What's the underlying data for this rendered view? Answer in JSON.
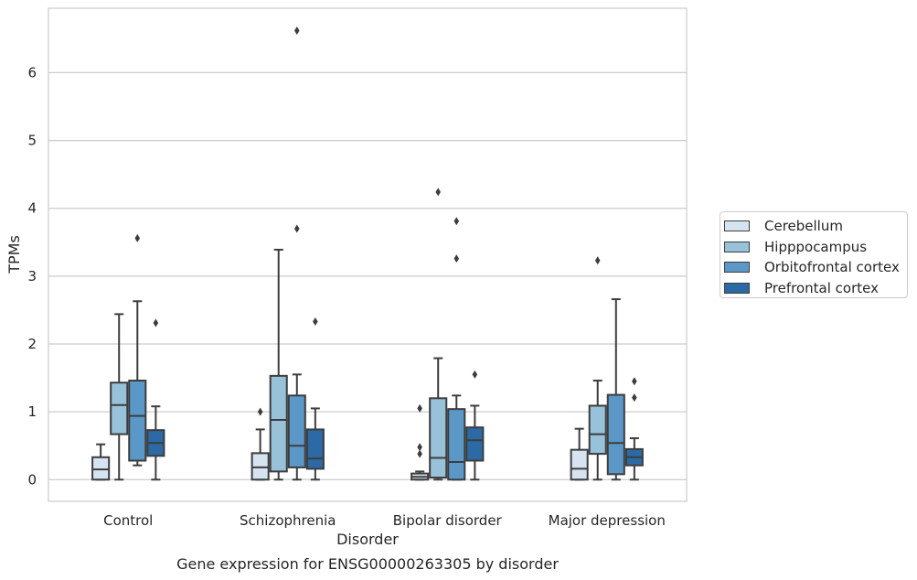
{
  "chart_data": {
    "type": "box",
    "title": "Gene expression for ENSG00000263305 by disorder",
    "xlabel": "Disorder",
    "ylabel": "TPMs",
    "ylim": [
      -0.32,
      6.95
    ],
    "yticks": [
      0,
      1,
      2,
      3,
      4,
      5,
      6
    ],
    "grid": true,
    "legend_position": "right",
    "categories": [
      "Control",
      "Schizophrenia",
      "Bipolar disorder",
      "Major depression"
    ],
    "series": [
      {
        "name": "Cerebellum",
        "color": "#d6e4f2",
        "boxes": [
          {
            "whisker_low": 0,
            "q1": 0,
            "median": 0.15,
            "q3": 0.33,
            "whisker_high": 0.52,
            "outliers": []
          },
          {
            "whisker_low": 0,
            "q1": 0,
            "median": 0.18,
            "q3": 0.39,
            "whisker_high": 0.74,
            "outliers": [
              1.0
            ]
          },
          {
            "whisker_low": 0,
            "q1": 0,
            "median": 0.04,
            "q3": 0.09,
            "whisker_high": 0.12,
            "outliers": [
              1.05,
              0.48,
              0.38
            ]
          },
          {
            "whisker_low": 0,
            "q1": 0,
            "median": 0.16,
            "q3": 0.44,
            "whisker_high": 0.75,
            "outliers": []
          }
        ]
      },
      {
        "name": "Hipppocampus",
        "color": "#98c1da",
        "boxes": [
          {
            "whisker_low": 0,
            "q1": 0.67,
            "median": 1.1,
            "q3": 1.43,
            "whisker_high": 2.44,
            "outliers": []
          },
          {
            "whisker_low": 0,
            "q1": 0.12,
            "median": 0.88,
            "q3": 1.53,
            "whisker_high": 3.39,
            "outliers": []
          },
          {
            "whisker_low": 0,
            "q1": 0.03,
            "median": 0.32,
            "q3": 1.2,
            "whisker_high": 1.79,
            "outliers": [
              4.24
            ]
          },
          {
            "whisker_low": 0,
            "q1": 0.38,
            "median": 0.67,
            "q3": 1.09,
            "whisker_high": 1.46,
            "outliers": [
              3.23
            ]
          }
        ]
      },
      {
        "name": "Orbitofrontal cortex",
        "color": "#5b98c7",
        "boxes": [
          {
            "whisker_low": 0.21,
            "q1": 0.28,
            "median": 0.94,
            "q3": 1.46,
            "whisker_high": 2.63,
            "outliers": [
              3.56
            ]
          },
          {
            "whisker_low": 0,
            "q1": 0.18,
            "median": 0.5,
            "q3": 1.24,
            "whisker_high": 1.55,
            "outliers": [
              3.7,
              6.62
            ]
          },
          {
            "whisker_low": 0,
            "q1": 0,
            "median": 0.26,
            "q3": 1.04,
            "whisker_high": 1.24,
            "outliers": [
              3.81,
              3.26
            ]
          },
          {
            "whisker_low": 0,
            "q1": 0.08,
            "median": 0.54,
            "q3": 1.25,
            "whisker_high": 2.66,
            "outliers": []
          }
        ]
      },
      {
        "name": "Prefrontal cortex",
        "color": "#2c6aa5",
        "boxes": [
          {
            "whisker_low": 0,
            "q1": 0.35,
            "median": 0.54,
            "q3": 0.73,
            "whisker_high": 1.08,
            "outliers": [
              2.31
            ]
          },
          {
            "whisker_low": 0,
            "q1": 0.16,
            "median": 0.31,
            "q3": 0.74,
            "whisker_high": 1.05,
            "outliers": [
              2.33
            ]
          },
          {
            "whisker_low": 0,
            "q1": 0.28,
            "median": 0.58,
            "q3": 0.77,
            "whisker_high": 1.09,
            "outliers": [
              1.55
            ]
          },
          {
            "whisker_low": 0,
            "q1": 0.21,
            "median": 0.33,
            "q3": 0.45,
            "whisker_high": 0.61,
            "outliers": [
              1.45,
              1.21
            ]
          }
        ]
      }
    ]
  }
}
